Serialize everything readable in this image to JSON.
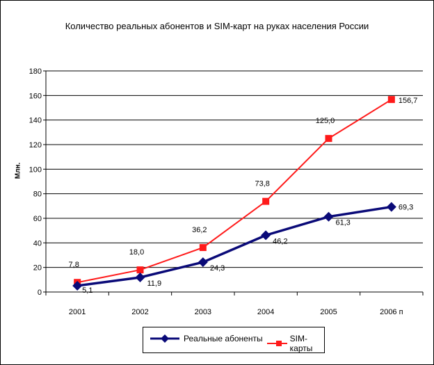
{
  "chart_data": {
    "type": "line",
    "title": "Количество реальных абонентов и SIM-карт на руках населения России",
    "ylabel": "Млн.",
    "categories": [
      "2001",
      "2002",
      "2003",
      "2004",
      "2005",
      "2006 п"
    ],
    "ylim": [
      0,
      180
    ],
    "yticks": [
      0,
      20,
      40,
      60,
      80,
      100,
      120,
      140,
      160,
      180
    ],
    "grid": true,
    "legend_position": "bottom",
    "series": [
      {
        "name": "Реальные абоненты",
        "color": "#0a0a78",
        "marker": "diamond",
        "values": [
          5.1,
          11.9,
          24.3,
          46.2,
          61.3,
          69.3
        ],
        "labels": [
          "5,1",
          "11,9",
          "24,3",
          "46,2",
          "61,3",
          "69,3"
        ]
      },
      {
        "name": "SIM-карты",
        "color": "#ff1a1a",
        "marker": "square",
        "values": [
          7.8,
          18.0,
          36.2,
          73.8,
          125.0,
          156.7
        ],
        "labels": [
          "7,8",
          "18,0",
          "36,2",
          "73,8",
          "125,0",
          "156,7"
        ]
      }
    ]
  }
}
